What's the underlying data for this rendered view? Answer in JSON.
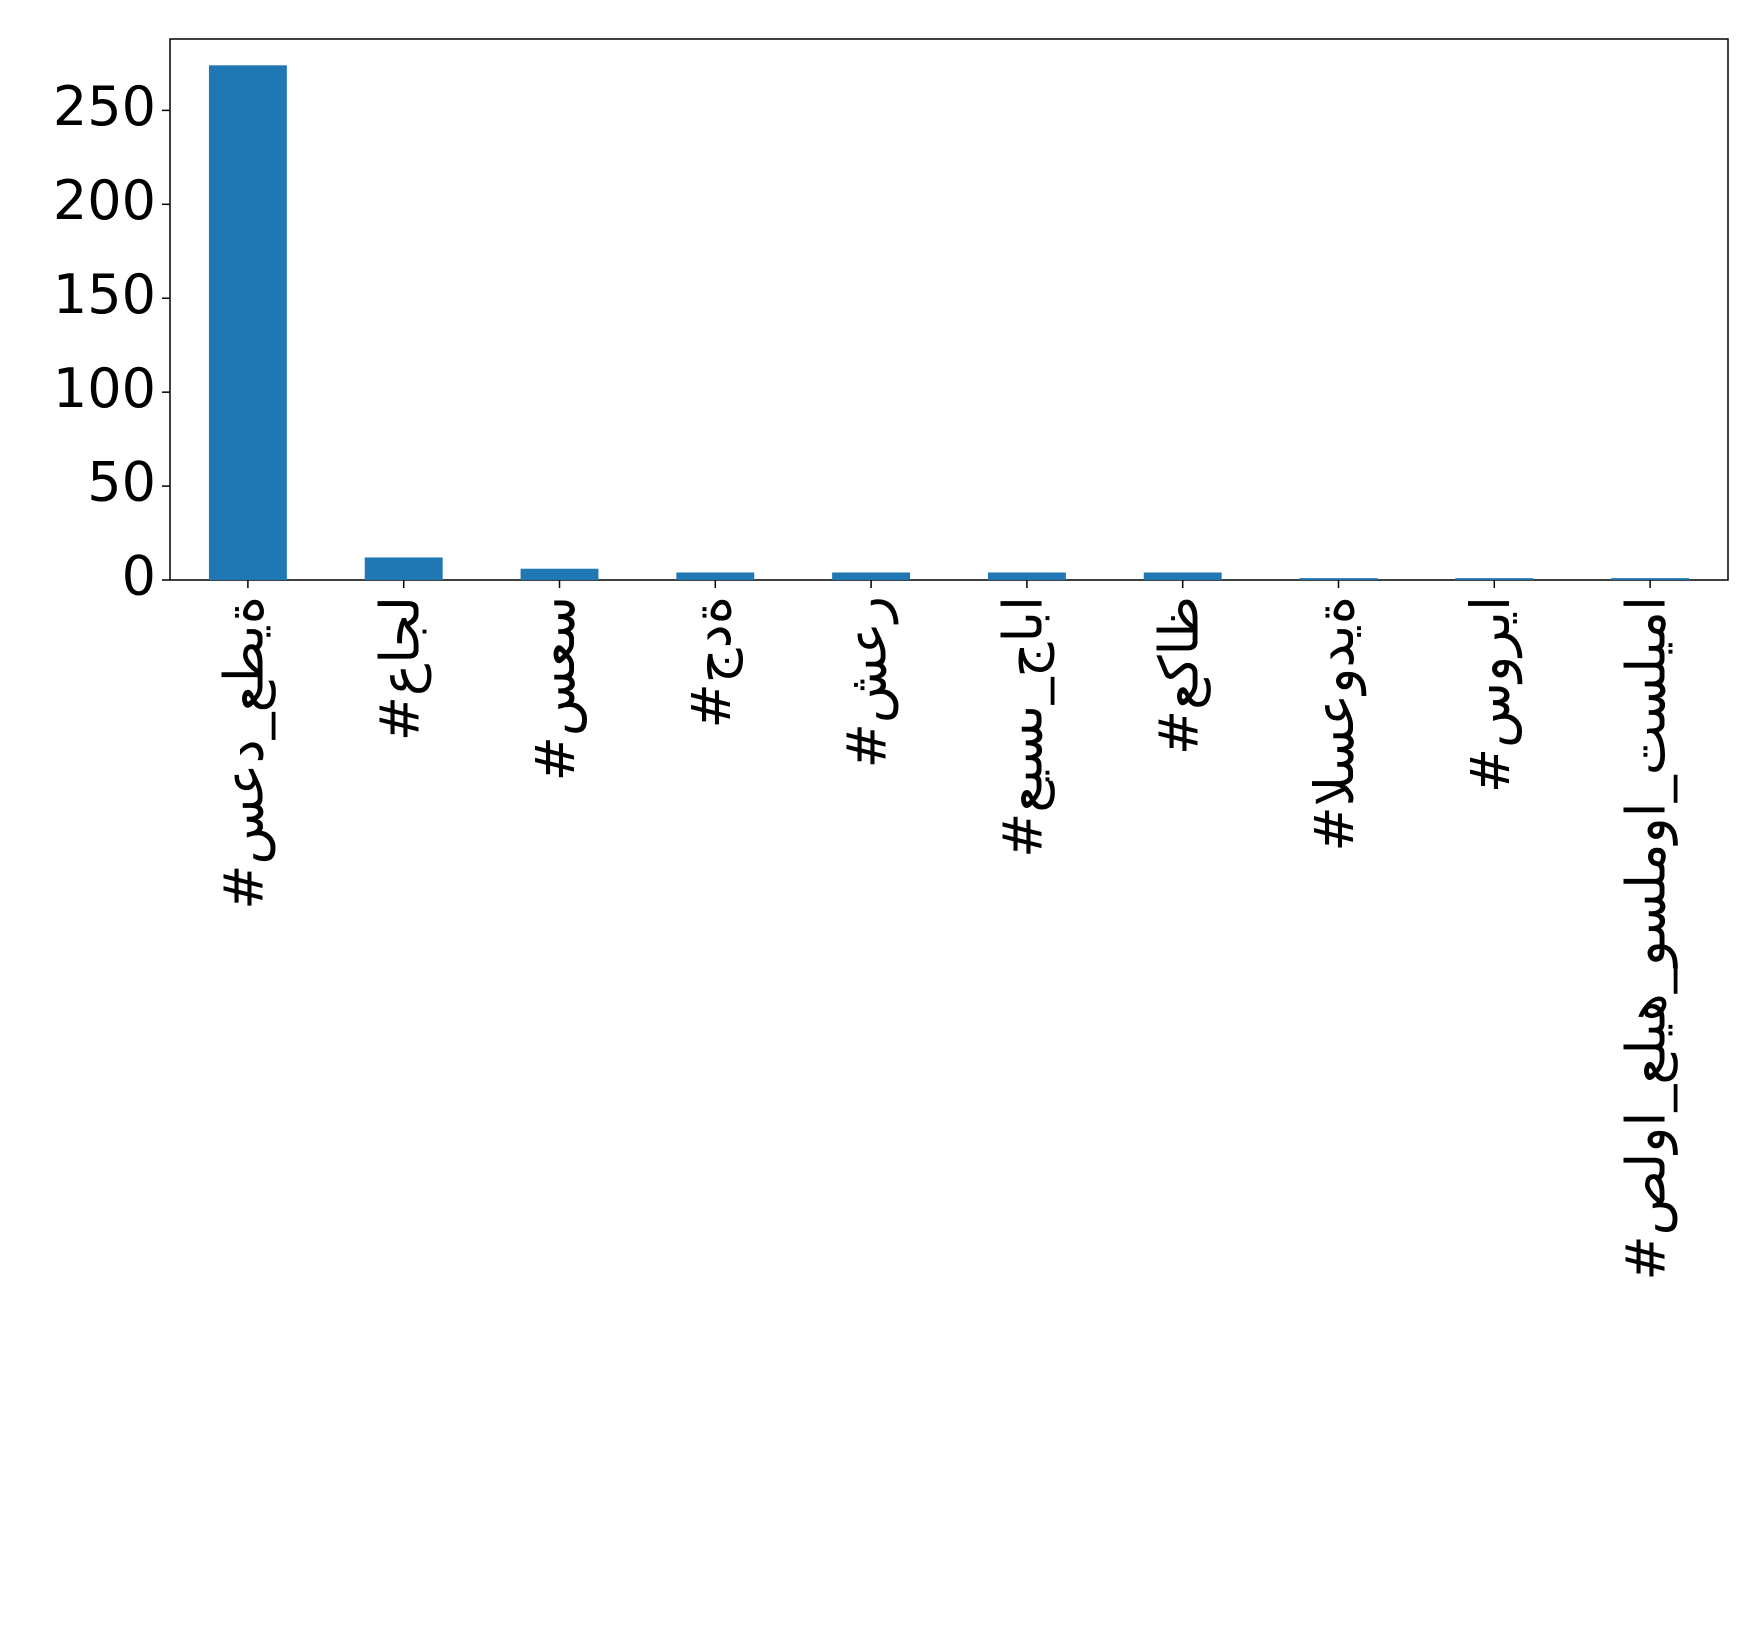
{
  "chart_data": {
    "type": "bar",
    "categories": [
      "#سعد_عطية",
      "#عاجل",
      "#سعس",
      "#جدة",
      "#شعر",
      "#عيسى_جابا",
      "#عكاظ",
      "#السعودية",
      "#سوريا",
      "#صلوا_عليه_وسلموا_تسليما"
    ],
    "values": [
      274,
      12,
      6,
      4,
      4,
      4,
      4,
      1,
      1,
      1
    ],
    "color": "#1f77b4",
    "ylim": [
      0,
      288
    ],
    "yticks": [
      0,
      50,
      100,
      150,
      200,
      250
    ],
    "grid": false
  }
}
